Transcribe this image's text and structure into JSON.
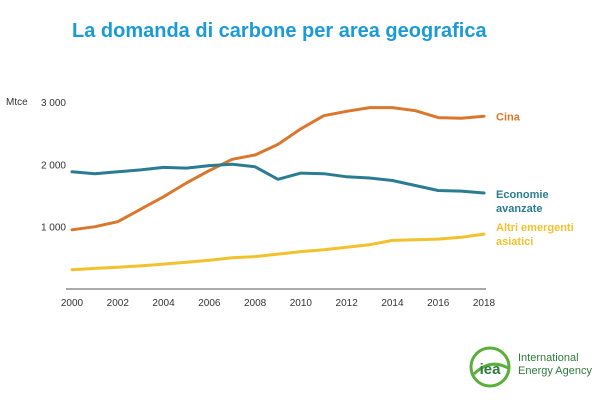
{
  "title": "La domanda di carbone per area geografica",
  "logo": {
    "mark": "iea",
    "line1": "International",
    "line2": "Energy Agency"
  },
  "colors": {
    "title": "#1a9bd7",
    "Cina": "#d9782d",
    "Economie avanzate": "#2b7c93",
    "Altri emergenti asiatici": "#f2c12e",
    "axis": "#333333",
    "logo": "#5aae3c"
  },
  "chart_data": {
    "type": "line",
    "unit": "Mtce",
    "x": [
      2000,
      2001,
      2002,
      2003,
      2004,
      2005,
      2006,
      2007,
      2008,
      2009,
      2010,
      2011,
      2012,
      2013,
      2014,
      2015,
      2016,
      2017,
      2018
    ],
    "x_ticks": [
      "2000",
      "2002",
      "2004",
      "2006",
      "2008",
      "2010",
      "2012",
      "2014",
      "2016",
      "2018"
    ],
    "y_ticks": [
      "1 000",
      "2 000",
      "3 000"
    ],
    "ylim": [
      0,
      3000
    ],
    "xlim": [
      2000,
      2018
    ],
    "grid": false,
    "series": [
      {
        "name": "Cina",
        "label_lines": [
          "Cina"
        ],
        "values": [
          950,
          1000,
          1080,
          1280,
          1480,
          1700,
          1900,
          2080,
          2150,
          2320,
          2570,
          2780,
          2850,
          2910,
          2910,
          2860,
          2750,
          2740,
          2770
        ]
      },
      {
        "name": "Economie avanzate",
        "label_lines": [
          "Economie",
          "avanzate"
        ],
        "values": [
          1880,
          1850,
          1880,
          1910,
          1950,
          1940,
          1980,
          2000,
          1960,
          1760,
          1860,
          1850,
          1800,
          1780,
          1740,
          1660,
          1580,
          1570,
          1540
        ]
      },
      {
        "name": "Altri emergenti asiatici",
        "label_lines": [
          "Altri emergenti",
          "asiatici"
        ],
        "values": [
          310,
          330,
          350,
          370,
          400,
          430,
          460,
          500,
          520,
          560,
          600,
          630,
          670,
          710,
          780,
          790,
          800,
          830,
          880
        ]
      }
    ]
  }
}
